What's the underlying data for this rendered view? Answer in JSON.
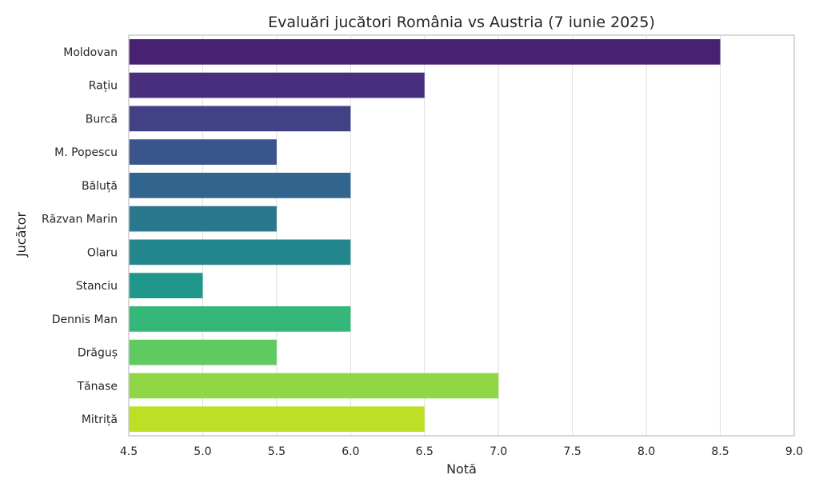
{
  "chart_data": {
    "type": "bar",
    "orientation": "horizontal",
    "title": "Evaluări jucători România vs Austria (7 iunie 2025)",
    "xlabel": "Notă",
    "ylabel": "Jucător",
    "xlim": [
      4.5,
      9.0
    ],
    "xticks": [
      "4.5",
      "5.0",
      "5.5",
      "6.0",
      "6.5",
      "7.0",
      "7.5",
      "8.0",
      "8.5",
      "9.0"
    ],
    "grid": true,
    "categories": [
      "Moldovan",
      "Rațiu",
      "Burcă",
      "M. Popescu",
      "Băluță",
      "Răzvan Marin",
      "Olaru",
      "Stanciu",
      "Dennis Man",
      "Drăguș",
      "Tănase",
      "Mitriță"
    ],
    "values": [
      8.5,
      6.5,
      6.0,
      5.5,
      6.0,
      5.5,
      6.0,
      5.0,
      6.0,
      5.5,
      7.0,
      6.5
    ],
    "colors": [
      "#482172",
      "#472f7d",
      "#424186",
      "#3a548c",
      "#32658e",
      "#2a788e",
      "#24878e",
      "#1f988b",
      "#35b779",
      "#60ca60",
      "#8fd744",
      "#bddf26"
    ],
    "gridColor": "#dddddd",
    "frameColor": "#cccccc"
  }
}
